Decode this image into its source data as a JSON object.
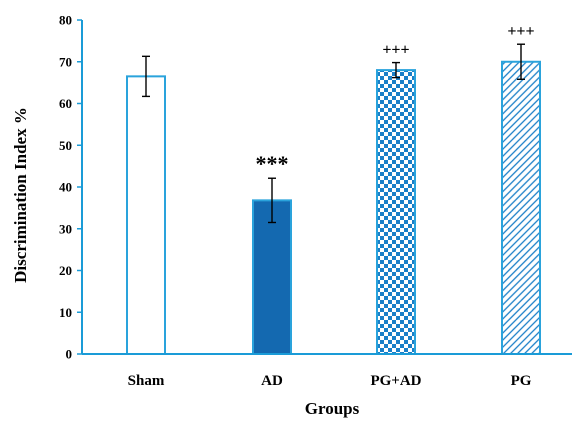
{
  "chart_data": {
    "type": "bar",
    "categories": [
      "Sham",
      "AD",
      "PG+AD",
      "PG"
    ],
    "values": [
      66.5,
      36.8,
      68.0,
      70.0
    ],
    "errors": [
      4.8,
      5.3,
      1.8,
      4.2
    ],
    "annotations": [
      "",
      "***",
      "+++",
      "+++"
    ],
    "fills": [
      "plain",
      "solid",
      "checker",
      "diagonal"
    ],
    "xlabel": "Groups",
    "ylabel": "Discrimination Index %",
    "ylim": [
      0,
      80
    ],
    "yticks": [
      0,
      10,
      20,
      30,
      40,
      50,
      60,
      70,
      80
    ],
    "grid": false,
    "colors": {
      "axis": "#1a9bd7",
      "bar_outline": "#2aa3dc",
      "solid_fill": "#1469b0",
      "pattern": "#1a7fc8"
    }
  }
}
